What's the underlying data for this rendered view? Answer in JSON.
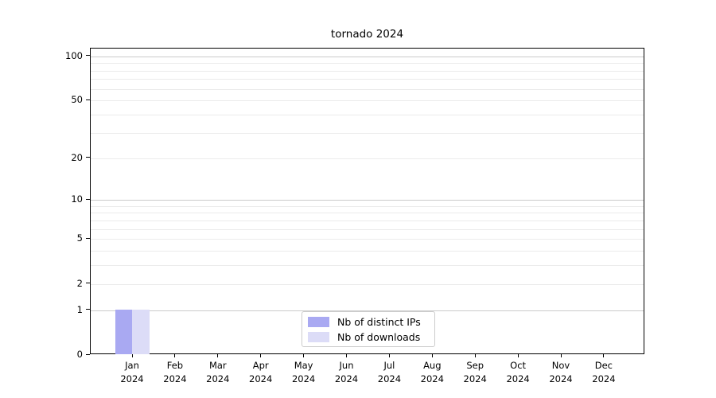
{
  "chart_data": {
    "type": "bar",
    "title": "tornado 2024",
    "categories": [
      {
        "month": "Jan",
        "year": "2024"
      },
      {
        "month": "Feb",
        "year": "2024"
      },
      {
        "month": "Mar",
        "year": "2024"
      },
      {
        "month": "Apr",
        "year": "2024"
      },
      {
        "month": "May",
        "year": "2024"
      },
      {
        "month": "Jun",
        "year": "2024"
      },
      {
        "month": "Jul",
        "year": "2024"
      },
      {
        "month": "Aug",
        "year": "2024"
      },
      {
        "month": "Sep",
        "year": "2024"
      },
      {
        "month": "Oct",
        "year": "2024"
      },
      {
        "month": "Nov",
        "year": "2024"
      },
      {
        "month": "Dec",
        "year": "2024"
      }
    ],
    "series": [
      {
        "name": "Nb of distinct IPs",
        "color": "#a9a9f2",
        "values": [
          1,
          0,
          0,
          0,
          0,
          0,
          0,
          0,
          0,
          0,
          0,
          0
        ]
      },
      {
        "name": "Nb of downloads",
        "color": "#dcdcf7",
        "values": [
          1,
          0,
          0,
          0,
          0,
          0,
          0,
          0,
          0,
          0,
          0,
          0
        ]
      }
    ],
    "xlabel": "",
    "ylabel": "",
    "y_scale": "log1p",
    "ylim": [
      0,
      113
    ],
    "y_ticks_labeled": [
      0,
      1,
      2,
      5,
      10,
      20,
      50,
      100
    ],
    "y_gridlines_major": [
      1,
      10,
      100
    ],
    "y_gridlines_minor": [
      2,
      3,
      4,
      5,
      6,
      7,
      8,
      9,
      20,
      30,
      40,
      50,
      60,
      70,
      80,
      90
    ],
    "grid": "horizontal major+minor",
    "legend_position": "lower center"
  },
  "colors": {
    "spine": "#000000",
    "gridline_major": "#cbcbcb",
    "gridline_minor": "#ebebeb",
    "legend_border": "#cccccc",
    "background": "#ffffff"
  }
}
